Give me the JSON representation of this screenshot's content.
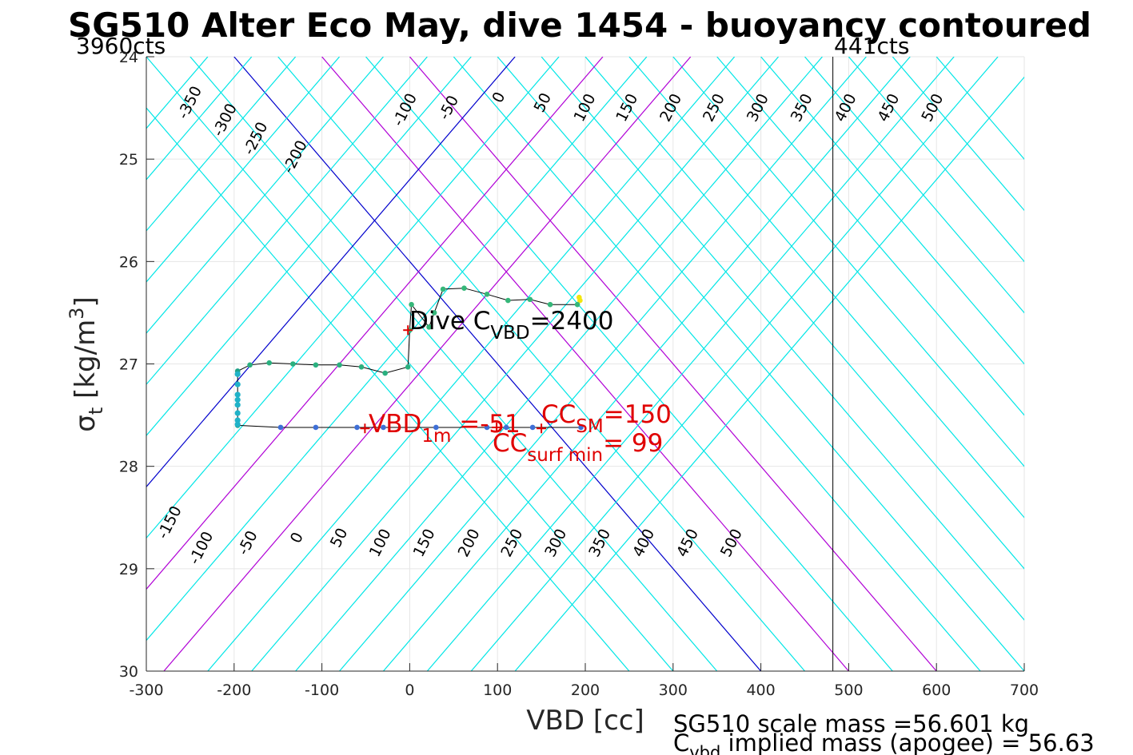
{
  "chart_data": {
    "type": "line",
    "title": "SG510 Alter Eco May, dive 1454 - buoyancy contoured",
    "xlabel": "VBD [cc]",
    "ylabel": {
      "sym": "σ",
      "sub": "t",
      "unit_pre": " [kg/m",
      "sup": "3",
      "unit_post": "]"
    },
    "xlim": [
      -300,
      700
    ],
    "ylim": [
      24,
      30
    ],
    "y_reversed": true,
    "grid": true,
    "x_ticks": [
      -300,
      -200,
      -100,
      0,
      100,
      200,
      300,
      400,
      500,
      600,
      700
    ],
    "x_tick_labels": [
      "-300",
      "-200",
      "-100",
      "0",
      "100",
      "200",
      "300",
      "400",
      "500",
      "600",
      "700"
    ],
    "y_ticks": [
      24,
      25,
      26,
      27,
      28,
      29,
      30
    ],
    "y_tick_labels": [
      "24",
      "25",
      "26",
      "27",
      "28",
      "29",
      "30"
    ],
    "top_labels": {
      "left": "3960cts",
      "right": "441cts"
    },
    "vbd_max_line_x": 482,
    "contours": {
      "slope": 0.01,
      "offsets": [
        -350,
        -300,
        -250,
        -200,
        -150,
        -100,
        -50,
        0,
        50,
        100,
        150,
        200,
        250,
        300,
        350,
        400,
        450,
        500,
        550,
        600
      ],
      "colors": {
        "default": "#00e6e6",
        "zero": "#0000cc",
        "special": "#b000d6"
      },
      "special_offsets": [
        -100,
        0
      ],
      "upper_labels": [
        {
          "v": -350,
          "x": -250,
          "y": 24.45,
          "text": "-350"
        },
        {
          "v": -300,
          "x": -210,
          "y": 24.62,
          "text": "-300"
        },
        {
          "v": -250,
          "x": -175,
          "y": 24.8,
          "text": "-250"
        },
        {
          "v": -200,
          "x": -130,
          "y": 24.98,
          "text": "-200"
        },
        {
          "v": -100,
          "x": -5,
          "y": 24.52,
          "text": "-100"
        },
        {
          "v": -50,
          "x": 45,
          "y": 24.5,
          "text": "-50"
        },
        {
          "v": 0,
          "x": 102,
          "y": 24.4,
          "text": "0"
        },
        {
          "v": 50,
          "x": 152,
          "y": 24.45,
          "text": "50"
        },
        {
          "v": 100,
          "x": 200,
          "y": 24.5,
          "text": "100"
        },
        {
          "v": 150,
          "x": 248,
          "y": 24.5,
          "text": "150"
        },
        {
          "v": 200,
          "x": 298,
          "y": 24.5,
          "text": "200"
        },
        {
          "v": 250,
          "x": 347,
          "y": 24.5,
          "text": "250"
        },
        {
          "v": 300,
          "x": 397,
          "y": 24.5,
          "text": "300"
        },
        {
          "v": 350,
          "x": 447,
          "y": 24.5,
          "text": "350"
        },
        {
          "v": 400,
          "x": 497,
          "y": 24.5,
          "text": "400"
        },
        {
          "v": 450,
          "x": 546,
          "y": 24.5,
          "text": "450"
        },
        {
          "v": 500,
          "x": 596,
          "y": 24.5,
          "text": "500"
        }
      ],
      "lower_labels": [
        {
          "v": -150,
          "x": -273,
          "y": 28.55,
          "text": "-150"
        },
        {
          "v": -100,
          "x": -237,
          "y": 28.8,
          "text": "-100"
        },
        {
          "v": -50,
          "x": -184,
          "y": 28.75,
          "text": "-50"
        },
        {
          "v": 0,
          "x": -128,
          "y": 28.7,
          "text": "0"
        },
        {
          "v": 50,
          "x": -80,
          "y": 28.7,
          "text": "50"
        },
        {
          "v": 100,
          "x": -33,
          "y": 28.75,
          "text": "100"
        },
        {
          "v": 150,
          "x": 17,
          "y": 28.75,
          "text": "150"
        },
        {
          "v": 200,
          "x": 68,
          "y": 28.75,
          "text": "200"
        },
        {
          "v": 250,
          "x": 117,
          "y": 28.75,
          "text": "250"
        },
        {
          "v": 300,
          "x": 167,
          "y": 28.75,
          "text": "300"
        },
        {
          "v": 350,
          "x": 217,
          "y": 28.75,
          "text": "350"
        },
        {
          "v": 400,
          "x": 267,
          "y": 28.75,
          "text": "400"
        },
        {
          "v": 450,
          "x": 317,
          "y": 28.75,
          "text": "450"
        },
        {
          "v": 500,
          "x": 367,
          "y": 28.75,
          "text": "500"
        }
      ]
    },
    "series": [
      {
        "type": "line-with-markers",
        "points": [
          [
            194,
            26.38
          ],
          [
            193,
            26.35
          ],
          [
            191,
            26.42
          ],
          [
            160,
            26.42
          ],
          [
            137,
            26.37
          ],
          [
            112,
            26.38
          ],
          [
            88,
            26.32
          ],
          [
            62,
            26.26
          ],
          [
            38,
            26.27
          ],
          [
            28,
            26.5
          ],
          [
            22,
            26.64
          ],
          [
            2,
            26.42
          ],
          [
            0,
            26.67
          ],
          [
            -2,
            27.03
          ],
          [
            -28,
            27.09
          ],
          [
            -55,
            27.03
          ],
          [
            -80,
            27.01
          ],
          [
            -107,
            27.01
          ],
          [
            -133,
            27.0
          ],
          [
            -160,
            26.99
          ],
          [
            -182,
            27.01
          ],
          [
            -196,
            27.07
          ],
          [
            -196,
            27.6
          ],
          [
            -147,
            27.62
          ],
          [
            -107,
            27.62
          ],
          [
            -60,
            27.62
          ],
          [
            -30,
            27.62
          ],
          [
            30,
            27.62
          ],
          [
            88,
            27.62
          ],
          [
            110,
            27.62
          ],
          [
            140,
            27.62
          ],
          [
            195,
            27.62
          ]
        ],
        "marker_colors": [
          "#f2e60e",
          "#f2e60e",
          "#35b779",
          "#35b779",
          "#35b779",
          "#35b779",
          "#35b779",
          "#35b779",
          "#35b779",
          "#35b779",
          "#35b779",
          "#35b779",
          "#35b779",
          "#2ab07f",
          "#2ab07f",
          "#2ab07f",
          "#2ab07f",
          "#2ab07f",
          "#2ab07f",
          "#2ab07f",
          "#2ab07f",
          "#1fa187",
          "#1fa187",
          "#3e6fd6",
          "#3e6fd6",
          "#3e6fd6",
          "#3e6fd6",
          "#3e6fd6",
          "#3e6fd6",
          "#3e6fd6",
          "#3e6fd6",
          "#3e6fd6"
        ]
      },
      {
        "type": "bottom-cluster",
        "points": [
          [
            -196,
            27.1
          ],
          [
            -196,
            27.2
          ],
          [
            -196,
            27.3
          ],
          [
            -196,
            27.35
          ],
          [
            -196,
            27.4
          ],
          [
            -196,
            27.48
          ],
          [
            -196,
            27.55
          ],
          [
            -196,
            27.59
          ]
        ],
        "color": "#1fb2c8"
      }
    ],
    "markers": [
      {
        "x": -2,
        "y": 26.67,
        "symbol": "+",
        "color": "#e00000"
      },
      {
        "x": -51,
        "y": 27.63,
        "symbol": "+",
        "color": "#e00000"
      },
      {
        "x": 150,
        "y": 27.63,
        "symbol": "+",
        "color": "#e00000"
      },
      {
        "x": 99,
        "y": 27.62,
        "symbol": "+",
        "color": "#e00000"
      }
    ],
    "annotations": {
      "dive_cvbd": {
        "pre": "Dive C",
        "sub": "VBD",
        "post": "=2400"
      },
      "vbd_1m": {
        "pre": "VBD",
        "sub": "1m",
        "post": " =-51"
      },
      "cc_sm": {
        "pre": "CC",
        "sub": "SM",
        "post": "=150"
      },
      "cc_surf": {
        "pre": "CC",
        "sub": "surf min",
        "post": "= 99"
      }
    },
    "footer": {
      "line1": "SG510 scale mass =56.601 kg",
      "line2_pre": "C",
      "line2_sub": "vbd",
      "line2_post": " implied mass (apogee) = 56.63"
    }
  }
}
